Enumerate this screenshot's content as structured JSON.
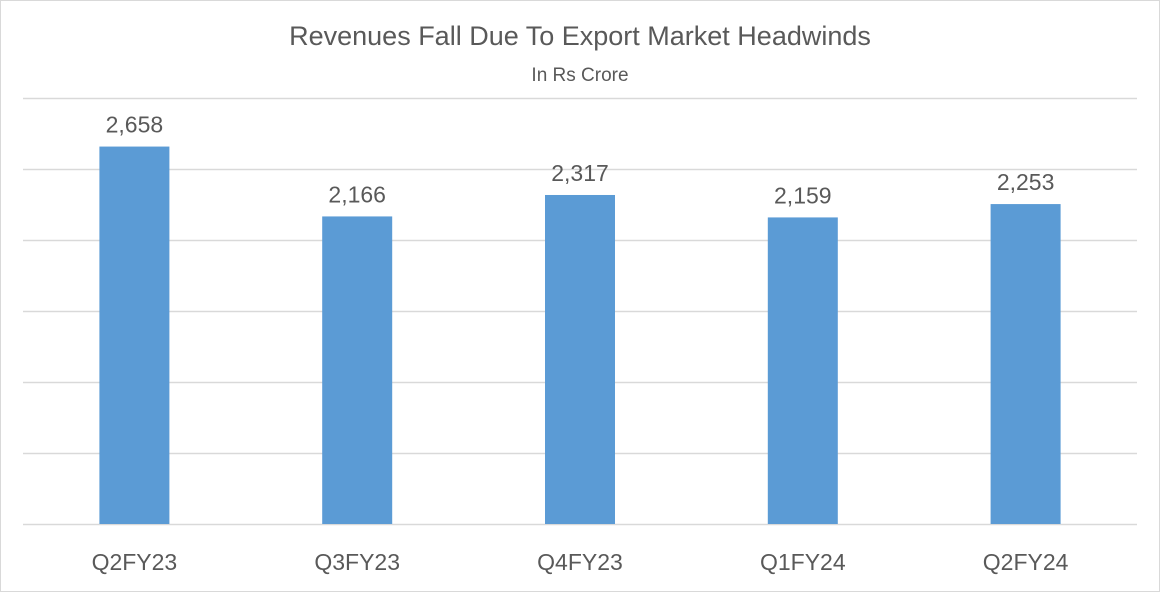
{
  "chart_data": {
    "type": "bar",
    "title": "Revenues Fall Due To Export Market Headwinds",
    "subtitle": "In Rs Crore",
    "categories": [
      "Q2FY23",
      "Q3FY23",
      "Q4FY23",
      "Q1FY24",
      "Q2FY24"
    ],
    "values": [
      2658,
      2166,
      2317,
      2159,
      2253
    ],
    "value_labels": [
      "2,658",
      "2,166",
      "2,317",
      "2,159",
      "2,253"
    ],
    "xlabel": "",
    "ylabel": "",
    "ylim": [
      0,
      3000
    ],
    "y_gridline_step": 500,
    "y_tick_labels_shown": false,
    "grid": true,
    "legend": "none",
    "bar_color": "#5b9bd5",
    "gridline_color": "#d9d9d9",
    "text_color": "#595959"
  }
}
